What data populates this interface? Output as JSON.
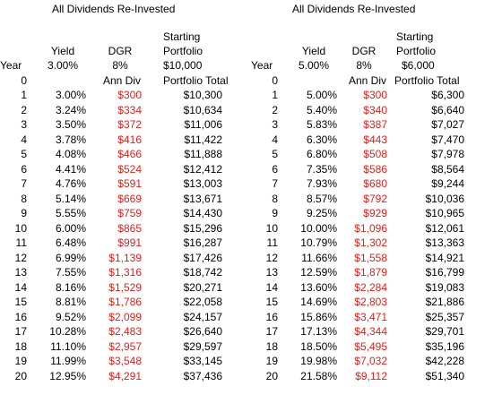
{
  "left": {
    "title": "All Dividends Re-Invested",
    "header": {
      "starting": "Starting",
      "yield_label": "Yield",
      "dgr_label": "DGR",
      "portfolio_label": "Portfolio",
      "year_label": "Year",
      "yield_value": "3.00%",
      "dgr_value": "8%",
      "portfolio_value": "$10,000",
      "ann_div_label": "Ann Div",
      "portfolio_total_label": "Portfolio Total"
    },
    "year0": "0",
    "rows": [
      {
        "year": "1",
        "yield": "3.00%",
        "div": "$300",
        "portfolio": "$10,300"
      },
      {
        "year": "2",
        "yield": "3.24%",
        "div": "$334",
        "portfolio": "$10,634"
      },
      {
        "year": "3",
        "yield": "3.50%",
        "div": "$372",
        "portfolio": "$11,006"
      },
      {
        "year": "4",
        "yield": "3.78%",
        "div": "$416",
        "portfolio": "$11,422"
      },
      {
        "year": "5",
        "yield": "4.08%",
        "div": "$466",
        "portfolio": "$11,888"
      },
      {
        "year": "6",
        "yield": "4.41%",
        "div": "$524",
        "portfolio": "$12,412"
      },
      {
        "year": "7",
        "yield": "4.76%",
        "div": "$591",
        "portfolio": "$13,003"
      },
      {
        "year": "8",
        "yield": "5.14%",
        "div": "$669",
        "portfolio": "$13,671"
      },
      {
        "year": "9",
        "yield": "5.55%",
        "div": "$759",
        "portfolio": "$14,430"
      },
      {
        "year": "10",
        "yield": "6.00%",
        "div": "$865",
        "portfolio": "$15,296"
      },
      {
        "year": "11",
        "yield": "6.48%",
        "div": "$991",
        "portfolio": "$16,287"
      },
      {
        "year": "12",
        "yield": "6.99%",
        "div": "$1,139",
        "portfolio": "$17,426"
      },
      {
        "year": "13",
        "yield": "7.55%",
        "div": "$1,316",
        "portfolio": "$18,742"
      },
      {
        "year": "14",
        "yield": "8.16%",
        "div": "$1,529",
        "portfolio": "$20,271"
      },
      {
        "year": "15",
        "yield": "8.81%",
        "div": "$1,786",
        "portfolio": "$22,058"
      },
      {
        "year": "16",
        "yield": "9.52%",
        "div": "$2,099",
        "portfolio": "$24,157"
      },
      {
        "year": "17",
        "yield": "10.28%",
        "div": "$2,483",
        "portfolio": "$26,640"
      },
      {
        "year": "18",
        "yield": "11.10%",
        "div": "$2,957",
        "portfolio": "$29,597"
      },
      {
        "year": "19",
        "yield": "11.99%",
        "div": "$3,548",
        "portfolio": "$33,145"
      },
      {
        "year": "20",
        "yield": "12.95%",
        "div": "$4,291",
        "portfolio": "$37,436"
      }
    ]
  },
  "right": {
    "title": "All Dividends Re-Invested",
    "header": {
      "starting": "Starting",
      "yield_label": "Yield",
      "dgr_label": "DGR",
      "portfolio_label": "Portfolio",
      "year_label": "Year",
      "yield_value": "5.00%",
      "dgr_value": "8%",
      "portfolio_value": "$6,000",
      "ann_div_label": "Ann Div",
      "portfolio_total_label": "Portfolio Total"
    },
    "year0": "0",
    "rows": [
      {
        "year": "1",
        "yield": "5.00%",
        "div": "$300",
        "portfolio": "$6,300"
      },
      {
        "year": "2",
        "yield": "5.40%",
        "div": "$340",
        "portfolio": "$6,640"
      },
      {
        "year": "3",
        "yield": "5.83%",
        "div": "$387",
        "portfolio": "$7,027"
      },
      {
        "year": "4",
        "yield": "6.30%",
        "div": "$443",
        "portfolio": "$7,470"
      },
      {
        "year": "5",
        "yield": "6.80%",
        "div": "$508",
        "portfolio": "$7,978"
      },
      {
        "year": "6",
        "yield": "7.35%",
        "div": "$586",
        "portfolio": "$8,564"
      },
      {
        "year": "7",
        "yield": "7.93%",
        "div": "$680",
        "portfolio": "$9,244"
      },
      {
        "year": "8",
        "yield": "8.57%",
        "div": "$792",
        "portfolio": "$10,036"
      },
      {
        "year": "9",
        "yield": "9.25%",
        "div": "$929",
        "portfolio": "$10,965"
      },
      {
        "year": "10",
        "yield": "10.00%",
        "div": "$1,096",
        "portfolio": "$12,061"
      },
      {
        "year": "11",
        "yield": "10.79%",
        "div": "$1,302",
        "portfolio": "$13,363"
      },
      {
        "year": "12",
        "yield": "11.66%",
        "div": "$1,558",
        "portfolio": "$14,921"
      },
      {
        "year": "13",
        "yield": "12.59%",
        "div": "$1,879",
        "portfolio": "$16,799"
      },
      {
        "year": "14",
        "yield": "13.60%",
        "div": "$2,284",
        "portfolio": "$19,083"
      },
      {
        "year": "15",
        "yield": "14.69%",
        "div": "$2,803",
        "portfolio": "$21,886"
      },
      {
        "year": "16",
        "yield": "15.86%",
        "div": "$3,471",
        "portfolio": "$25,357"
      },
      {
        "year": "17",
        "yield": "17.13%",
        "div": "$4,344",
        "portfolio": "$29,701"
      },
      {
        "year": "18",
        "yield": "18.50%",
        "div": "$5,495",
        "portfolio": "$35,196"
      },
      {
        "year": "19",
        "yield": "19.98%",
        "div": "$7,032",
        "portfolio": "$42,228"
      },
      {
        "year": "20",
        "yield": "21.58%",
        "div": "$9,112",
        "portfolio": "$51,340"
      }
    ]
  },
  "colors": {
    "dividend_text": "#e0201b",
    "text": "#000000",
    "background": "#ffffff"
  }
}
